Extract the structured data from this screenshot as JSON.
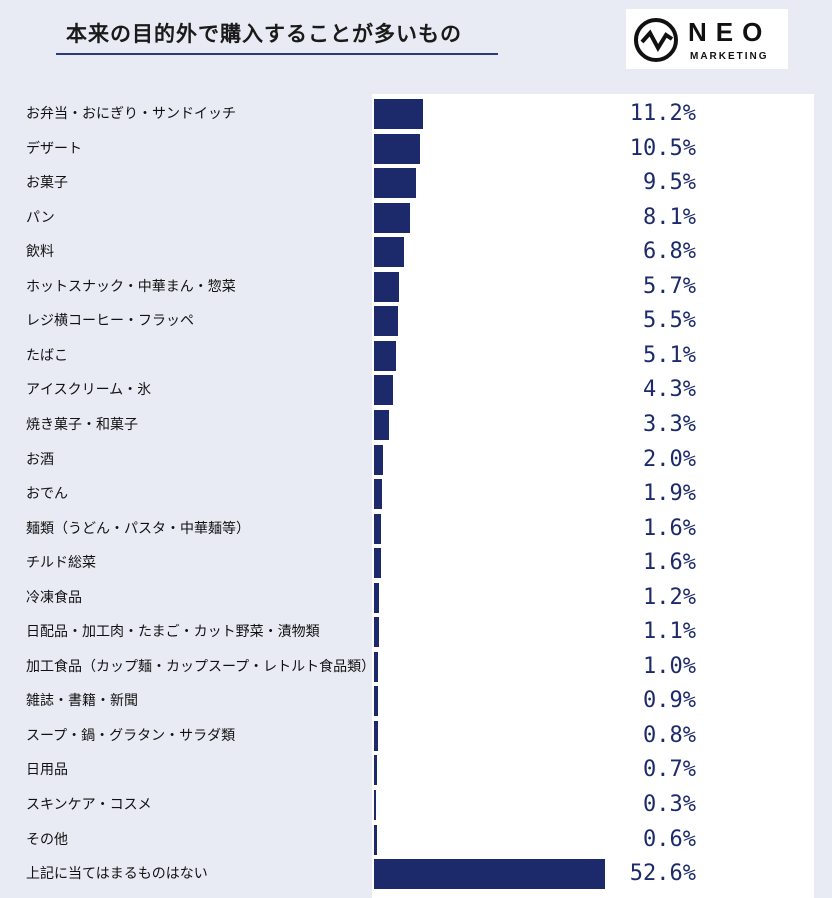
{
  "title": "本来の目的外で購入することが多いもの",
  "logo": {
    "word": "NEO",
    "sub": "MARKETING"
  },
  "chart_data": {
    "type": "bar",
    "orientation": "horizontal",
    "title": "本来の目的外で購入することが多いもの",
    "unit": "%",
    "categories": [
      "お弁当・おにぎり・サンドイッチ",
      "デザート",
      "お菓子",
      "パン",
      "飲料",
      "ホットスナック・中華まん・惣菜",
      "レジ横コーヒー・フラッペ",
      "たばこ",
      "アイスクリーム・氷",
      "焼き菓子・和菓子",
      "お酒",
      "おでん",
      "麺類（うどん・パスタ・中華麺等）",
      "チルド総菜",
      "冷凍食品",
      "日配品・加工肉・たまご・カット野菜・漬物類",
      "加工食品（カップ麺・カップスープ・レトルト食品類）",
      "雑誌・書籍・新聞",
      "スープ・鍋・グラタン・サラダ類",
      "日用品",
      "スキンケア・コスメ",
      "その他",
      "上記に当てはまるものはない"
    ],
    "values": [
      11.2,
      10.5,
      9.5,
      8.1,
      6.8,
      5.7,
      5.5,
      5.1,
      4.3,
      3.3,
      2.0,
      1.9,
      1.6,
      1.6,
      1.2,
      1.1,
      1.0,
      0.9,
      0.8,
      0.7,
      0.3,
      0.6,
      52.6
    ],
    "value_labels": [
      "11.2%",
      "10.5%",
      "9.5%",
      "8.1%",
      "6.8%",
      "5.7%",
      "5.5%",
      "5.1%",
      "4.3%",
      "3.3%",
      "2.0%",
      "1.9%",
      "1.6%",
      "1.6%",
      "1.2%",
      "1.1%",
      "1.0%",
      "0.9%",
      "0.8%",
      "0.7%",
      "0.3%",
      "0.6%",
      "52.6%"
    ],
    "xlim": [
      0,
      100
    ],
    "grid": false,
    "legend": "none",
    "bar_color": "#1c2a6b"
  }
}
